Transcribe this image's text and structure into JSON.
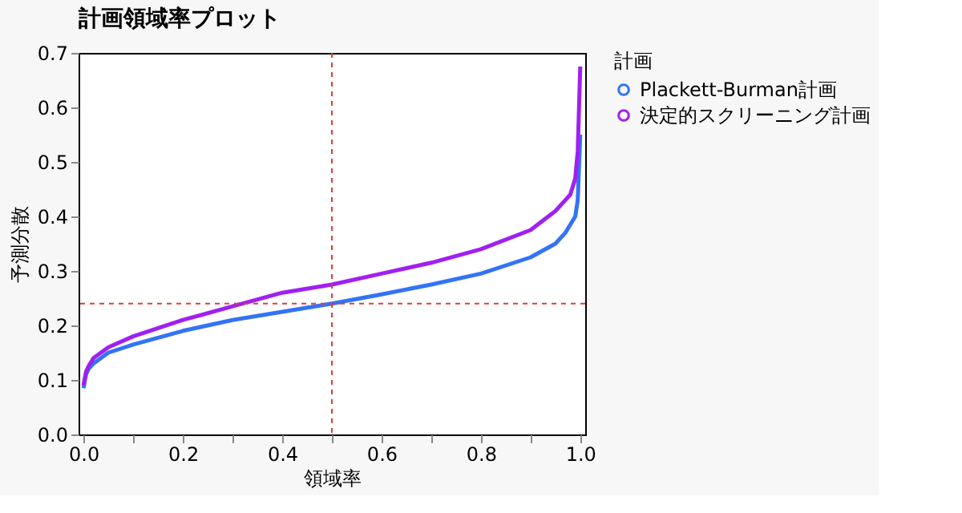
{
  "chart_data": {
    "type": "line",
    "title": "計画領域率プロット",
    "xlabel": "領域率",
    "ylabel": "予測分散",
    "legend_title": "計画",
    "legend": "right",
    "xlim": [
      -0.01,
      1.01
    ],
    "ylim": [
      0,
      0.7
    ],
    "xticks": [
      {
        "value": 0,
        "label": "0.0"
      },
      {
        "value": 0.1,
        "label": null
      },
      {
        "value": 0.2,
        "label": "0.2"
      },
      {
        "value": 0.3,
        "label": null
      },
      {
        "value": 0.4,
        "label": "0.4"
      },
      {
        "value": 0.5,
        "label": null
      },
      {
        "value": 0.6,
        "label": "0.6"
      },
      {
        "value": 0.7,
        "label": null
      },
      {
        "value": 0.8,
        "label": "0.8"
      },
      {
        "value": 0.9,
        "label": null
      },
      {
        "value": 1,
        "label": "1.0"
      }
    ],
    "yticks": [
      {
        "value": 0,
        "label": "0.0"
      },
      0.1,
      0.2,
      0.3,
      0.4,
      0.5,
      0.6,
      0.7
    ],
    "grid": false,
    "marker": "none",
    "line_style": "solid",
    "x": [
      0,
      0.005,
      0.01,
      0.02,
      0.05,
      0.1,
      0.2,
      0.3,
      0.4,
      0.5,
      0.6,
      0.7,
      0.8,
      0.9,
      0.95,
      0.97,
      0.98,
      0.99,
      0.995,
      1.0
    ],
    "series": [
      {
        "name": "Plackett-Burman計画",
        "color": "#3373f5",
        "values": [
          0.085,
          0.11,
          0.12,
          0.13,
          0.15,
          0.165,
          0.19,
          0.21,
          0.225,
          0.24,
          0.257,
          0.275,
          0.295,
          0.325,
          0.35,
          0.37,
          0.385,
          0.4,
          0.43,
          0.55
        ]
      },
      {
        "name": "決定的スクリーニング計画",
        "color": "#a020f0",
        "values": [
          0.09,
          0.115,
          0.125,
          0.14,
          0.16,
          0.18,
          0.21,
          0.235,
          0.26,
          0.275,
          0.295,
          0.315,
          0.34,
          0.375,
          0.41,
          0.43,
          0.44,
          0.47,
          0.52,
          0.675
        ]
      }
    ],
    "ref_lines": [
      {
        "axis": "x",
        "value": 0.5,
        "label": null,
        "color": "#e03c3c",
        "line_style": "dashed"
      },
      {
        "axis": "y",
        "value": 0.24,
        "label": null,
        "color": "#e03c3c",
        "line_style": "dashed"
      }
    ]
  }
}
